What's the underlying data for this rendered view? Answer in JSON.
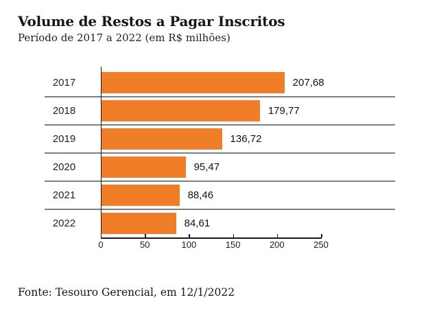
{
  "chart_data": {
    "type": "bar",
    "orientation": "horizontal",
    "title": "Volume de Restos a Pagar Inscritos",
    "subtitle": "Período de 2017 a 2022 (em R$ milhões)",
    "source": "Fonte: Tesouro Gerencial, em 12/1/2022",
    "categories": [
      "2017",
      "2018",
      "2019",
      "2020",
      "2021",
      "2022"
    ],
    "values": [
      207.68,
      179.77,
      136.72,
      95.47,
      88.46,
      84.61
    ],
    "value_labels": [
      "207,68",
      "179,77",
      "136,72",
      "95,47",
      "88,46",
      "84,61"
    ],
    "xlabel": "",
    "ylabel": "",
    "xlim": [
      0,
      250
    ],
    "x_ticks": [
      0,
      50,
      100,
      150,
      200,
      250
    ],
    "x_tick_labels": [
      "0",
      "50",
      "100",
      "150",
      "200",
      "250"
    ],
    "legend": "none",
    "grid": "horizontal category separator lines",
    "colors": {
      "bar": "#f07d27",
      "separator": "#7f7f7f",
      "axis": "#1a1a1a",
      "text": "#161616"
    }
  }
}
